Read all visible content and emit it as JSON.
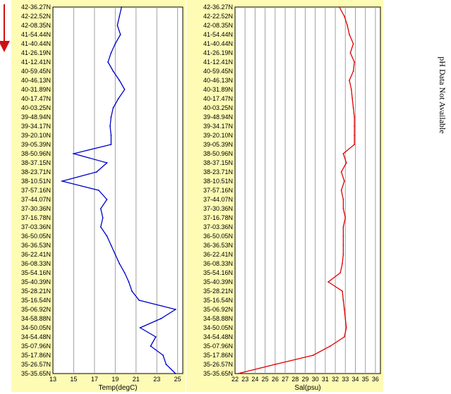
{
  "arrow_color": "#d01010",
  "panel_background": "#fdfbb4",
  "side_note": "pH Data Not Available",
  "chart_data": [
    {
      "type": "line",
      "xlabel": "Temp(degC)",
      "ylabel": "",
      "color": "#0000cc",
      "xlim": [
        13,
        25.5
      ],
      "xticks": [
        "13",
        "15",
        "17",
        "19",
        "21",
        "23",
        "25"
      ],
      "xtick_values": [
        13,
        15,
        17,
        19,
        21,
        23,
        25
      ],
      "grid": true,
      "latitude_labels": [
        "42-36.27N",
        "42-22.52N",
        "42-08.35N",
        "41-54.44N",
        "41-40.44N",
        "41-26.19N",
        "41-12.41N",
        "40-59.45N",
        "40-46.13N",
        "40-31.89N",
        "40-17.47N",
        "40-03.25N",
        "39-48.94N",
        "39-34.17N",
        "39-20.10N",
        "39-05.39N",
        "38-50.96N",
        "38-37.15N",
        "38-23.71N",
        "38-10.51N",
        "37-57.16N",
        "37-44.07N",
        "37-30.36N",
        "37-16.78N",
        "37-03.36N",
        "36-50.05N",
        "36-36.53N",
        "36-22.41N",
        "36-08.33N",
        "35-54.16N",
        "35-40.39N",
        "35-28.21N",
        "35-16.54N",
        "35-06.92N",
        "34-58.88N",
        "34-50.05N",
        "34-54.48N",
        "35-07.96N",
        "35-17.86N",
        "35-26.57N",
        "35-35.65N"
      ],
      "values": [
        19.6,
        19.4,
        19.2,
        19.5,
        19.0,
        18.6,
        18.3,
        18.8,
        19.4,
        19.9,
        19.3,
        18.8,
        18.6,
        18.5,
        18.6,
        18.6,
        15.0,
        18.2,
        17.2,
        13.9,
        17.4,
        18.2,
        17.6,
        17.8,
        17.6,
        18.2,
        18.6,
        19.0,
        19.4,
        19.9,
        20.3,
        20.6,
        21.3,
        24.8,
        23.4,
        21.4,
        22.9,
        22.4,
        23.6,
        23.9,
        24.8
      ]
    },
    {
      "type": "line",
      "xlabel": "Sal(psu)",
      "ylabel": "",
      "color": "#e00000",
      "xlim": [
        22,
        36.5
      ],
      "xticks": [
        "22",
        "23",
        "24",
        "25",
        "26",
        "27",
        "28",
        "29",
        "30",
        "31",
        "32",
        "33",
        "34",
        "35",
        "36"
      ],
      "xtick_values": [
        22,
        23,
        24,
        25,
        26,
        27,
        28,
        29,
        30,
        31,
        32,
        33,
        34,
        35,
        36
      ],
      "grid": true,
      "latitude_labels": [
        "42-36.27N",
        "42-22.52N",
        "42-08.35N",
        "41-54.44N",
        "41-40.44N",
        "41-26.19N",
        "41-12.41N",
        "40-59.45N",
        "40-46.13N",
        "40-31.89N",
        "40-17.47N",
        "40-03.25N",
        "39-48.94N",
        "39-34.17N",
        "39-20.10N",
        "39-05.39N",
        "38-50.96N",
        "38-37.15N",
        "38-23.71N",
        "38-10.51N",
        "37-57.16N",
        "37-44.07N",
        "37-30.36N",
        "37-16.78N",
        "37-03.36N",
        "36-50.05N",
        "36-36.53N",
        "36-22.41N",
        "36-08.33N",
        "35-54.16N",
        "35-40.39N",
        "35-28.21N",
        "35-16.54N",
        "35-06.92N",
        "34-58.88N",
        "34-50.05N",
        "34-54.48N",
        "35-07.96N",
        "35-17.86N",
        "35-26.57N",
        "35-35.65N"
      ],
      "values": [
        32.4,
        32.9,
        33.2,
        33.4,
        33.8,
        33.5,
        33.9,
        33.8,
        33.4,
        33.6,
        33.7,
        33.8,
        33.9,
        33.9,
        33.9,
        33.9,
        32.8,
        33.1,
        32.6,
        32.9,
        32.6,
        32.8,
        32.8,
        33.0,
        32.8,
        32.8,
        32.8,
        32.8,
        32.7,
        32.5,
        31.3,
        32.7,
        32.8,
        32.9,
        33.0,
        33.1,
        32.9,
        31.5,
        29.8,
        26.0,
        22.3
      ]
    }
  ]
}
